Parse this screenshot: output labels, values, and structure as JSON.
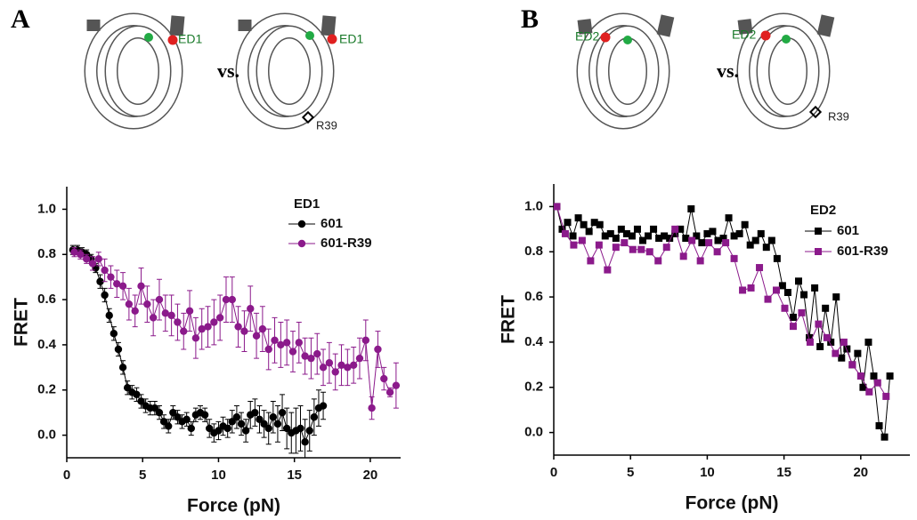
{
  "chart_data": [
    {
      "type": "line",
      "panel": "A",
      "schematic": {
        "left_label": "ED1",
        "vs": "vs.",
        "right_label": "ED1",
        "right_marker": "R39"
      },
      "xlabel": "Force (pN)",
      "ylabel": "FRET",
      "legend_title": "ED1",
      "marker": "circle",
      "error_bars": true,
      "xlim": [
        0,
        22
      ],
      "ylim": [
        -0.1,
        1.1
      ],
      "xticks": [
        0,
        5,
        10,
        15,
        20
      ],
      "yticks": [
        {
          "value": 0,
          "label": "0.0"
        },
        0.2,
        0.4,
        0.6,
        0.8,
        {
          "value": 1,
          "label": "1.0"
        }
      ],
      "series": [
        {
          "name": "601",
          "color": "#000000",
          "x": [
            0.4,
            0.7,
            1.0,
            1.3,
            1.6,
            1.9,
            2.2,
            2.5,
            2.8,
            3.1,
            3.4,
            3.7,
            4.0,
            4.3,
            4.6,
            4.9,
            5.2,
            5.5,
            5.8,
            6.1,
            6.4,
            6.7,
            7.0,
            7.3,
            7.6,
            7.9,
            8.2,
            8.5,
            8.8,
            9.1,
            9.4,
            9.7,
            10.0,
            10.3,
            10.6,
            10.9,
            11.2,
            11.5,
            11.8,
            12.1,
            12.4,
            12.7,
            13.0,
            13.3,
            13.6,
            13.9,
            14.2,
            14.5,
            14.8,
            15.1,
            15.4,
            15.7,
            16.0,
            16.3,
            16.6,
            16.9
          ],
          "values": [
            0.82,
            0.82,
            0.81,
            0.8,
            0.78,
            0.74,
            0.68,
            0.62,
            0.53,
            0.45,
            0.38,
            0.3,
            0.21,
            0.19,
            0.18,
            0.15,
            0.13,
            0.12,
            0.12,
            0.1,
            0.06,
            0.04,
            0.1,
            0.08,
            0.06,
            0.07,
            0.03,
            0.09,
            0.1,
            0.09,
            0.03,
            0.01,
            0.02,
            0.04,
            0.03,
            0.06,
            0.08,
            0.05,
            0.02,
            0.09,
            0.1,
            0.07,
            0.05,
            0.03,
            0.08,
            0.05,
            0.1,
            0.03,
            0.01,
            0.02,
            0.03,
            -0.03,
            0.02,
            0.08,
            0.12,
            0.13
          ],
          "errors": [
            0.02,
            0.02,
            0.02,
            0.02,
            0.02,
            0.02,
            0.03,
            0.03,
            0.03,
            0.03,
            0.03,
            0.03,
            0.03,
            0.03,
            0.03,
            0.03,
            0.03,
            0.03,
            0.03,
            0.03,
            0.03,
            0.03,
            0.03,
            0.03,
            0.03,
            0.03,
            0.03,
            0.03,
            0.03,
            0.03,
            0.04,
            0.04,
            0.04,
            0.04,
            0.04,
            0.05,
            0.05,
            0.05,
            0.05,
            0.06,
            0.06,
            0.06,
            0.06,
            0.07,
            0.07,
            0.08,
            0.08,
            0.09,
            0.09,
            0.1,
            0.1,
            0.1,
            0.09,
            0.08,
            0.08,
            0.06
          ]
        },
        {
          "name": "601-R39",
          "color": "#8b1a8b",
          "x": [
            0.5,
            0.9,
            1.3,
            1.7,
            2.1,
            2.5,
            2.9,
            3.3,
            3.7,
            4.1,
            4.5,
            4.9,
            5.3,
            5.7,
            6.1,
            6.5,
            6.9,
            7.3,
            7.7,
            8.1,
            8.5,
            8.9,
            9.3,
            9.7,
            10.1,
            10.5,
            10.9,
            11.3,
            11.7,
            12.1,
            12.5,
            12.9,
            13.3,
            13.7,
            14.1,
            14.5,
            14.9,
            15.3,
            15.7,
            16.1,
            16.5,
            16.9,
            17.3,
            17.7,
            18.1,
            18.5,
            18.9,
            19.3,
            19.7,
            20.1,
            20.5,
            20.9,
            21.3,
            21.7
          ],
          "values": [
            0.81,
            0.8,
            0.78,
            0.76,
            0.78,
            0.73,
            0.7,
            0.67,
            0.66,
            0.58,
            0.55,
            0.66,
            0.58,
            0.52,
            0.6,
            0.54,
            0.53,
            0.5,
            0.46,
            0.55,
            0.43,
            0.47,
            0.48,
            0.5,
            0.52,
            0.6,
            0.6,
            0.48,
            0.46,
            0.56,
            0.44,
            0.47,
            0.38,
            0.42,
            0.4,
            0.41,
            0.37,
            0.41,
            0.35,
            0.34,
            0.36,
            0.3,
            0.32,
            0.28,
            0.31,
            0.3,
            0.31,
            0.34,
            0.42,
            0.12,
            0.38,
            0.25,
            0.19,
            0.22
          ],
          "errors": [
            0.02,
            0.02,
            0.02,
            0.03,
            0.03,
            0.05,
            0.05,
            0.06,
            0.06,
            0.07,
            0.07,
            0.08,
            0.08,
            0.08,
            0.09,
            0.08,
            0.09,
            0.08,
            0.08,
            0.09,
            0.09,
            0.09,
            0.09,
            0.1,
            0.1,
            0.1,
            0.1,
            0.09,
            0.09,
            0.1,
            0.1,
            0.1,
            0.09,
            0.1,
            0.1,
            0.1,
            0.09,
            0.09,
            0.08,
            0.09,
            0.09,
            0.08,
            0.09,
            0.08,
            0.09,
            0.08,
            0.08,
            0.09,
            0.09,
            0.05,
            0.08,
            0.05,
            0.02,
            0.1
          ]
        }
      ]
    },
    {
      "type": "line",
      "panel": "B",
      "schematic": {
        "left_label": "ED2",
        "vs": "vs.",
        "right_label": "ED2",
        "right_marker": "R39"
      },
      "xlabel": "Force (pN)",
      "ylabel": "FRET",
      "legend_title": "ED2",
      "marker": "square",
      "error_bars": false,
      "xlim": [
        0,
        23.2
      ],
      "ylim": [
        -0.1,
        1.1
      ],
      "xticks": [
        0,
        5,
        10,
        15,
        20
      ],
      "yticks": [
        {
          "value": 0,
          "label": "0.0"
        },
        0.2,
        0.4,
        0.6,
        0.8,
        {
          "value": 1,
          "label": "1.0"
        }
      ],
      "series": [
        {
          "name": "601",
          "color": "#000000",
          "x": [
            0.2,
            0.55,
            0.9,
            1.25,
            1.6,
            1.95,
            2.3,
            2.65,
            3.0,
            3.35,
            3.7,
            4.05,
            4.4,
            4.75,
            5.1,
            5.45,
            5.8,
            6.15,
            6.5,
            6.85,
            7.2,
            7.55,
            7.9,
            8.25,
            8.6,
            8.95,
            9.3,
            9.65,
            10.0,
            10.35,
            10.7,
            11.05,
            11.4,
            11.75,
            12.1,
            12.45,
            12.8,
            13.15,
            13.5,
            13.85,
            14.2,
            14.55,
            14.9,
            15.25,
            15.6,
            15.95,
            16.3,
            16.65,
            17.0,
            17.35,
            17.7,
            18.05,
            18.4,
            18.75,
            19.1,
            19.45,
            19.8,
            20.15,
            20.5,
            20.85,
            21.2,
            21.55,
            21.9
          ],
          "values": [
            1.0,
            0.9,
            0.93,
            0.87,
            0.95,
            0.92,
            0.89,
            0.93,
            0.92,
            0.87,
            0.88,
            0.86,
            0.9,
            0.88,
            0.87,
            0.9,
            0.85,
            0.87,
            0.9,
            0.86,
            0.87,
            0.86,
            0.88,
            0.9,
            0.86,
            0.99,
            0.87,
            0.84,
            0.88,
            0.89,
            0.85,
            0.86,
            0.95,
            0.87,
            0.88,
            0.92,
            0.83,
            0.85,
            0.88,
            0.82,
            0.85,
            0.77,
            0.65,
            0.62,
            0.51,
            0.67,
            0.61,
            0.42,
            0.64,
            0.38,
            0.55,
            0.4,
            0.6,
            0.33,
            0.37,
            0.3,
            0.35,
            0.2,
            0.4,
            0.25,
            0.03,
            -0.02,
            0.25
          ]
        },
        {
          "name": "601-R39",
          "color": "#8b1a8b",
          "x": [
            0.2,
            0.75,
            1.3,
            1.85,
            2.4,
            2.95,
            3.5,
            4.05,
            4.6,
            5.15,
            5.7,
            6.25,
            6.8,
            7.35,
            7.9,
            8.45,
            9.0,
            9.55,
            10.1,
            10.65,
            11.2,
            11.75,
            12.3,
            12.85,
            13.4,
            13.95,
            14.5,
            15.05,
            15.6,
            16.15,
            16.7,
            17.25,
            17.8,
            18.35,
            18.9,
            19.45,
            20.0,
            20.55,
            21.1,
            21.65
          ],
          "values": [
            1.0,
            0.88,
            0.83,
            0.85,
            0.76,
            0.83,
            0.72,
            0.82,
            0.84,
            0.81,
            0.81,
            0.8,
            0.76,
            0.82,
            0.9,
            0.78,
            0.85,
            0.76,
            0.84,
            0.8,
            0.84,
            0.77,
            0.63,
            0.64,
            0.73,
            0.59,
            0.63,
            0.55,
            0.47,
            0.53,
            0.4,
            0.48,
            0.42,
            0.35,
            0.4,
            0.3,
            0.25,
            0.18,
            0.22,
            0.16
          ]
        }
      ]
    }
  ]
}
